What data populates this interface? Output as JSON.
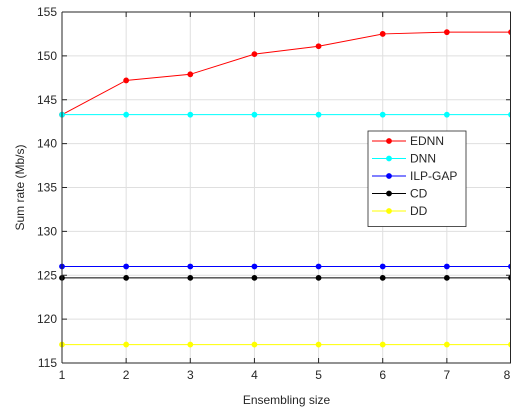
{
  "chart_data": {
    "type": "line",
    "title": "",
    "xlabel": "Ensembling size",
    "ylabel": "Sum rate (Mb/s)",
    "xlim": [
      1,
      8
    ],
    "ylim": [
      115,
      155
    ],
    "xticks": [
      1,
      2,
      3,
      4,
      5,
      6,
      7,
      8
    ],
    "yticks": [
      115,
      120,
      125,
      130,
      135,
      140,
      145,
      150,
      155
    ],
    "grid": true,
    "legend_position": "right",
    "x": [
      1,
      2,
      3,
      4,
      5,
      6,
      7,
      8
    ],
    "series": [
      {
        "name": "EDNN",
        "color": "#ff0000",
        "marker": "dot",
        "values": [
          143.3,
          147.2,
          147.9,
          150.2,
          151.1,
          152.5,
          152.7,
          152.7
        ]
      },
      {
        "name": "DNN",
        "color": "#00ffff",
        "marker": "dot",
        "values": [
          143.3,
          143.3,
          143.3,
          143.3,
          143.3,
          143.3,
          143.3,
          143.3
        ]
      },
      {
        "name": "ILP-GAP",
        "color": "#0000ff",
        "marker": "dot",
        "values": [
          126.0,
          126.0,
          126.0,
          126.0,
          126.0,
          126.0,
          126.0,
          126.0
        ]
      },
      {
        "name": "CD",
        "color": "#000000",
        "marker": "dot",
        "values": [
          124.7,
          124.7,
          124.7,
          124.7,
          124.7,
          124.7,
          124.7,
          124.7
        ]
      },
      {
        "name": "DD",
        "color": "#ffff00",
        "marker": "dot",
        "values": [
          117.1,
          117.1,
          117.1,
          117.1,
          117.1,
          117.1,
          117.1,
          117.1
        ]
      }
    ]
  }
}
